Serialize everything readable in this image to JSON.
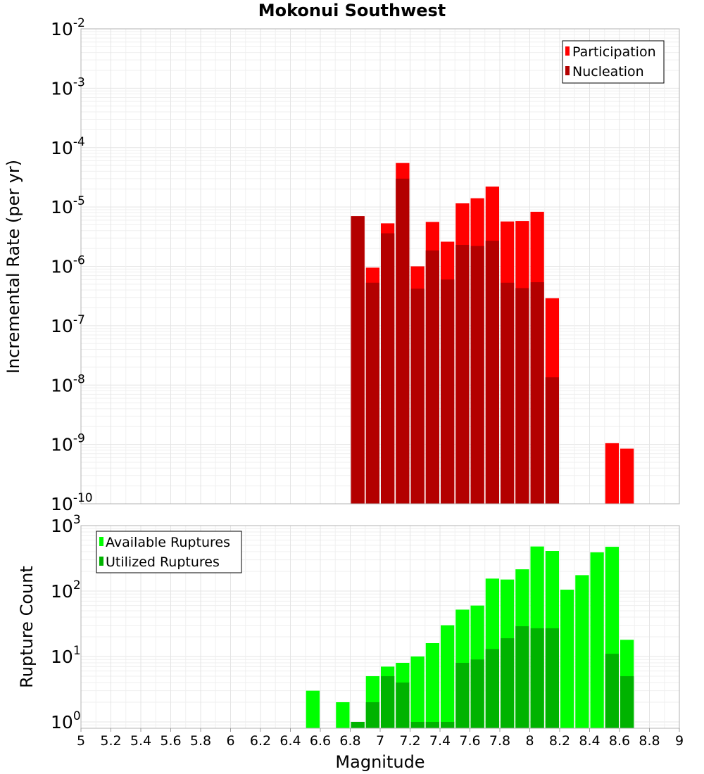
{
  "chart_data": [
    {
      "type": "bar",
      "title": "Mokonui Southwest",
      "ylabel": "Incremental Rate (per yr)",
      "yscale": "log",
      "ylim": [
        1e-10,
        0.01
      ],
      "xlim": [
        5,
        9
      ],
      "x": [
        6.85,
        6.95,
        7.05,
        7.15,
        7.25,
        7.35,
        7.45,
        7.55,
        7.65,
        7.75,
        7.85,
        7.95,
        8.05,
        8.15,
        8.55,
        8.65
      ],
      "series": [
        {
          "name": "Participation",
          "color": "#ff0000",
          "values": [
            7e-06,
            9.5e-07,
            5.3e-06,
            5.5e-05,
            1e-06,
            5.6e-06,
            2.6e-06,
            1.15e-05,
            1.4e-05,
            2.2e-05,
            5.7e-06,
            5.8e-06,
            8.3e-06,
            2.9e-07,
            1.05e-09,
            8.5e-10
          ]
        },
        {
          "name": "Nucleation",
          "color": "#b30000",
          "values": [
            7e-06,
            5.3e-07,
            3.6e-06,
            3e-05,
            4.2e-07,
            1.85e-06,
            6e-07,
            2.3e-06,
            2.2e-06,
            2.7e-06,
            5.3e-07,
            4.3e-07,
            5.4e-07,
            1.35e-08,
            null,
            null
          ]
        }
      ],
      "legend": "top-right",
      "grid": true
    },
    {
      "type": "bar",
      "xlabel": "Magnitude",
      "ylabel": "Rupture Count",
      "yscale": "log",
      "ylim": [
        0.8,
        1000
      ],
      "xlim": [
        5,
        9
      ],
      "x": [
        6.55,
        6.75,
        6.85,
        6.95,
        7.05,
        7.15,
        7.25,
        7.35,
        7.45,
        7.55,
        7.65,
        7.75,
        7.85,
        7.95,
        8.05,
        8.15,
        8.25,
        8.35,
        8.45,
        8.55,
        8.65
      ],
      "series": [
        {
          "name": "Available Ruptures",
          "color": "#00ff00",
          "values": [
            3,
            2,
            1,
            5,
            7,
            8,
            10,
            16,
            30,
            52,
            60,
            155,
            150,
            215,
            480,
            410,
            105,
            175,
            390,
            475,
            18
          ]
        },
        {
          "name": "Utilized Ruptures",
          "color": "#00b300",
          "values": [
            null,
            null,
            1,
            2,
            5,
            4,
            1,
            1,
            1,
            8,
            9,
            13,
            19,
            29,
            27,
            27,
            null,
            null,
            null,
            11,
            5
          ]
        }
      ],
      "legend": "top-left",
      "grid": true
    }
  ],
  "axes": {
    "x_ticks": [
      "5",
      "5.2",
      "5.4",
      "5.6",
      "5.8",
      "6",
      "6.2",
      "6.4",
      "6.6",
      "6.8",
      "7",
      "7.2",
      "7.4",
      "7.6",
      "7.8",
      "8",
      "8.2",
      "8.4",
      "8.6",
      "8.8",
      "9"
    ],
    "top_y_ticks": [
      {
        "base": "10",
        "exp": "-10"
      },
      {
        "base": "10",
        "exp": "-9"
      },
      {
        "base": "10",
        "exp": "-8"
      },
      {
        "base": "10",
        "exp": "-7"
      },
      {
        "base": "10",
        "exp": "-6"
      },
      {
        "base": "10",
        "exp": "-5"
      },
      {
        "base": "10",
        "exp": "-4"
      },
      {
        "base": "10",
        "exp": "-3"
      },
      {
        "base": "10",
        "exp": "-2"
      }
    ],
    "bottom_y_ticks": [
      {
        "base": "10",
        "exp": "0"
      },
      {
        "base": "10",
        "exp": "1"
      },
      {
        "base": "10",
        "exp": "2"
      },
      {
        "base": "10",
        "exp": "3"
      }
    ]
  }
}
